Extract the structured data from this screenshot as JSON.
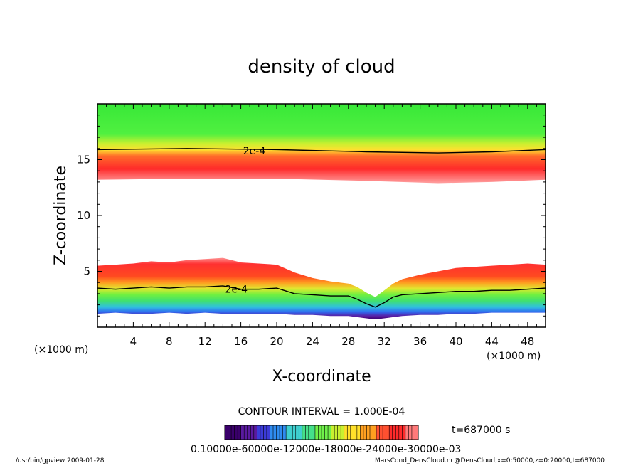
{
  "chart_data": {
    "type": "heatmap",
    "title": "density of cloud",
    "xlabel": "X-coordinate",
    "ylabel": "Z-coordinate",
    "x_unit": "(×1000 m)",
    "xlim": [
      0,
      50
    ],
    "ylim": [
      0,
      20
    ],
    "x_ticks": [
      "4",
      "8",
      "12",
      "16",
      "20",
      "24",
      "28",
      "32",
      "36",
      "40",
      "44",
      "48"
    ],
    "x_tick_values": [
      4,
      8,
      12,
      16,
      20,
      24,
      28,
      32,
      36,
      40,
      44,
      48
    ],
    "y_ticks": [
      "5",
      "10",
      "15"
    ],
    "y_tick_values": [
      5,
      10,
      15
    ],
    "contour_interval_label": "CONTOUR INTERVAL = 1.000E-04",
    "contour_labels": [
      {
        "text": "2e-4",
        "x": 17.5,
        "z": 15.8
      },
      {
        "text": "2e-4",
        "x": 15.5,
        "z": 3.4
      }
    ],
    "upper_layer": {
      "bottom_x": [
        0,
        10,
        20,
        30,
        38,
        44,
        50
      ],
      "bottom_z": [
        13.2,
        13.3,
        13.3,
        13.1,
        12.9,
        13.0,
        13.2
      ],
      "contour_2e4_z": [
        15.9,
        16.0,
        15.9,
        15.7,
        15.6,
        15.7,
        15.9
      ],
      "top_z": 20
    },
    "lower_layer": {
      "x": [
        0,
        2,
        4,
        6,
        8,
        10,
        12,
        14,
        16,
        18,
        20,
        22,
        24,
        26,
        28,
        29,
        30,
        31,
        32,
        33,
        34,
        36,
        38,
        40,
        42,
        44,
        46,
        48,
        50
      ],
      "top_z": [
        5.5,
        5.6,
        5.7,
        5.9,
        5.8,
        6.0,
        6.1,
        6.2,
        5.8,
        5.7,
        5.6,
        4.9,
        4.4,
        4.1,
        3.9,
        3.6,
        3.1,
        2.7,
        3.3,
        3.9,
        4.3,
        4.7,
        5.0,
        5.3,
        5.4,
        5.5,
        5.6,
        5.7,
        5.6
      ],
      "contour_2e4_z": [
        3.5,
        3.4,
        3.5,
        3.6,
        3.5,
        3.6,
        3.6,
        3.7,
        3.4,
        3.4,
        3.5,
        3.0,
        2.9,
        2.8,
        2.8,
        2.5,
        2.1,
        1.8,
        2.2,
        2.7,
        2.9,
        3.0,
        3.1,
        3.2,
        3.2,
        3.3,
        3.3,
        3.4,
        3.5
      ],
      "bottom_z": [
        1.2,
        1.3,
        1.2,
        1.2,
        1.3,
        1.2,
        1.3,
        1.2,
        1.2,
        1.2,
        1.2,
        1.1,
        1.1,
        1.0,
        1.0,
        0.9,
        0.8,
        0.7,
        0.8,
        0.9,
        1.0,
        1.1,
        1.1,
        1.2,
        1.2,
        1.3,
        1.3,
        1.3,
        1.3
      ]
    },
    "colorbar": {
      "colors": [
        "#3a006b",
        "#5a1aa0",
        "#3b3bd8",
        "#2f8cf0",
        "#3fd0d0",
        "#45e08a",
        "#6ff04a",
        "#c8f030",
        "#ffe02a",
        "#ffa020",
        "#ff5030",
        "#ff2a2a",
        "#ff7a7a"
      ],
      "labels_text": "0.10000e-60000e-12000e-18000e-24000e-30000e-03",
      "label_values": [
        "0.1000",
        "6.000e-04",
        "1.200e-03",
        "1.800e-03",
        "2.400e-03",
        "3.000e-03"
      ]
    },
    "time_label": "t=687000 s"
  },
  "footer": {
    "left": "/usr/bin/gpview   2009-01-28",
    "right": "MarsCond_DensCloud.nc@DensCloud,x=0:50000,z=0:20000,t=687000"
  }
}
